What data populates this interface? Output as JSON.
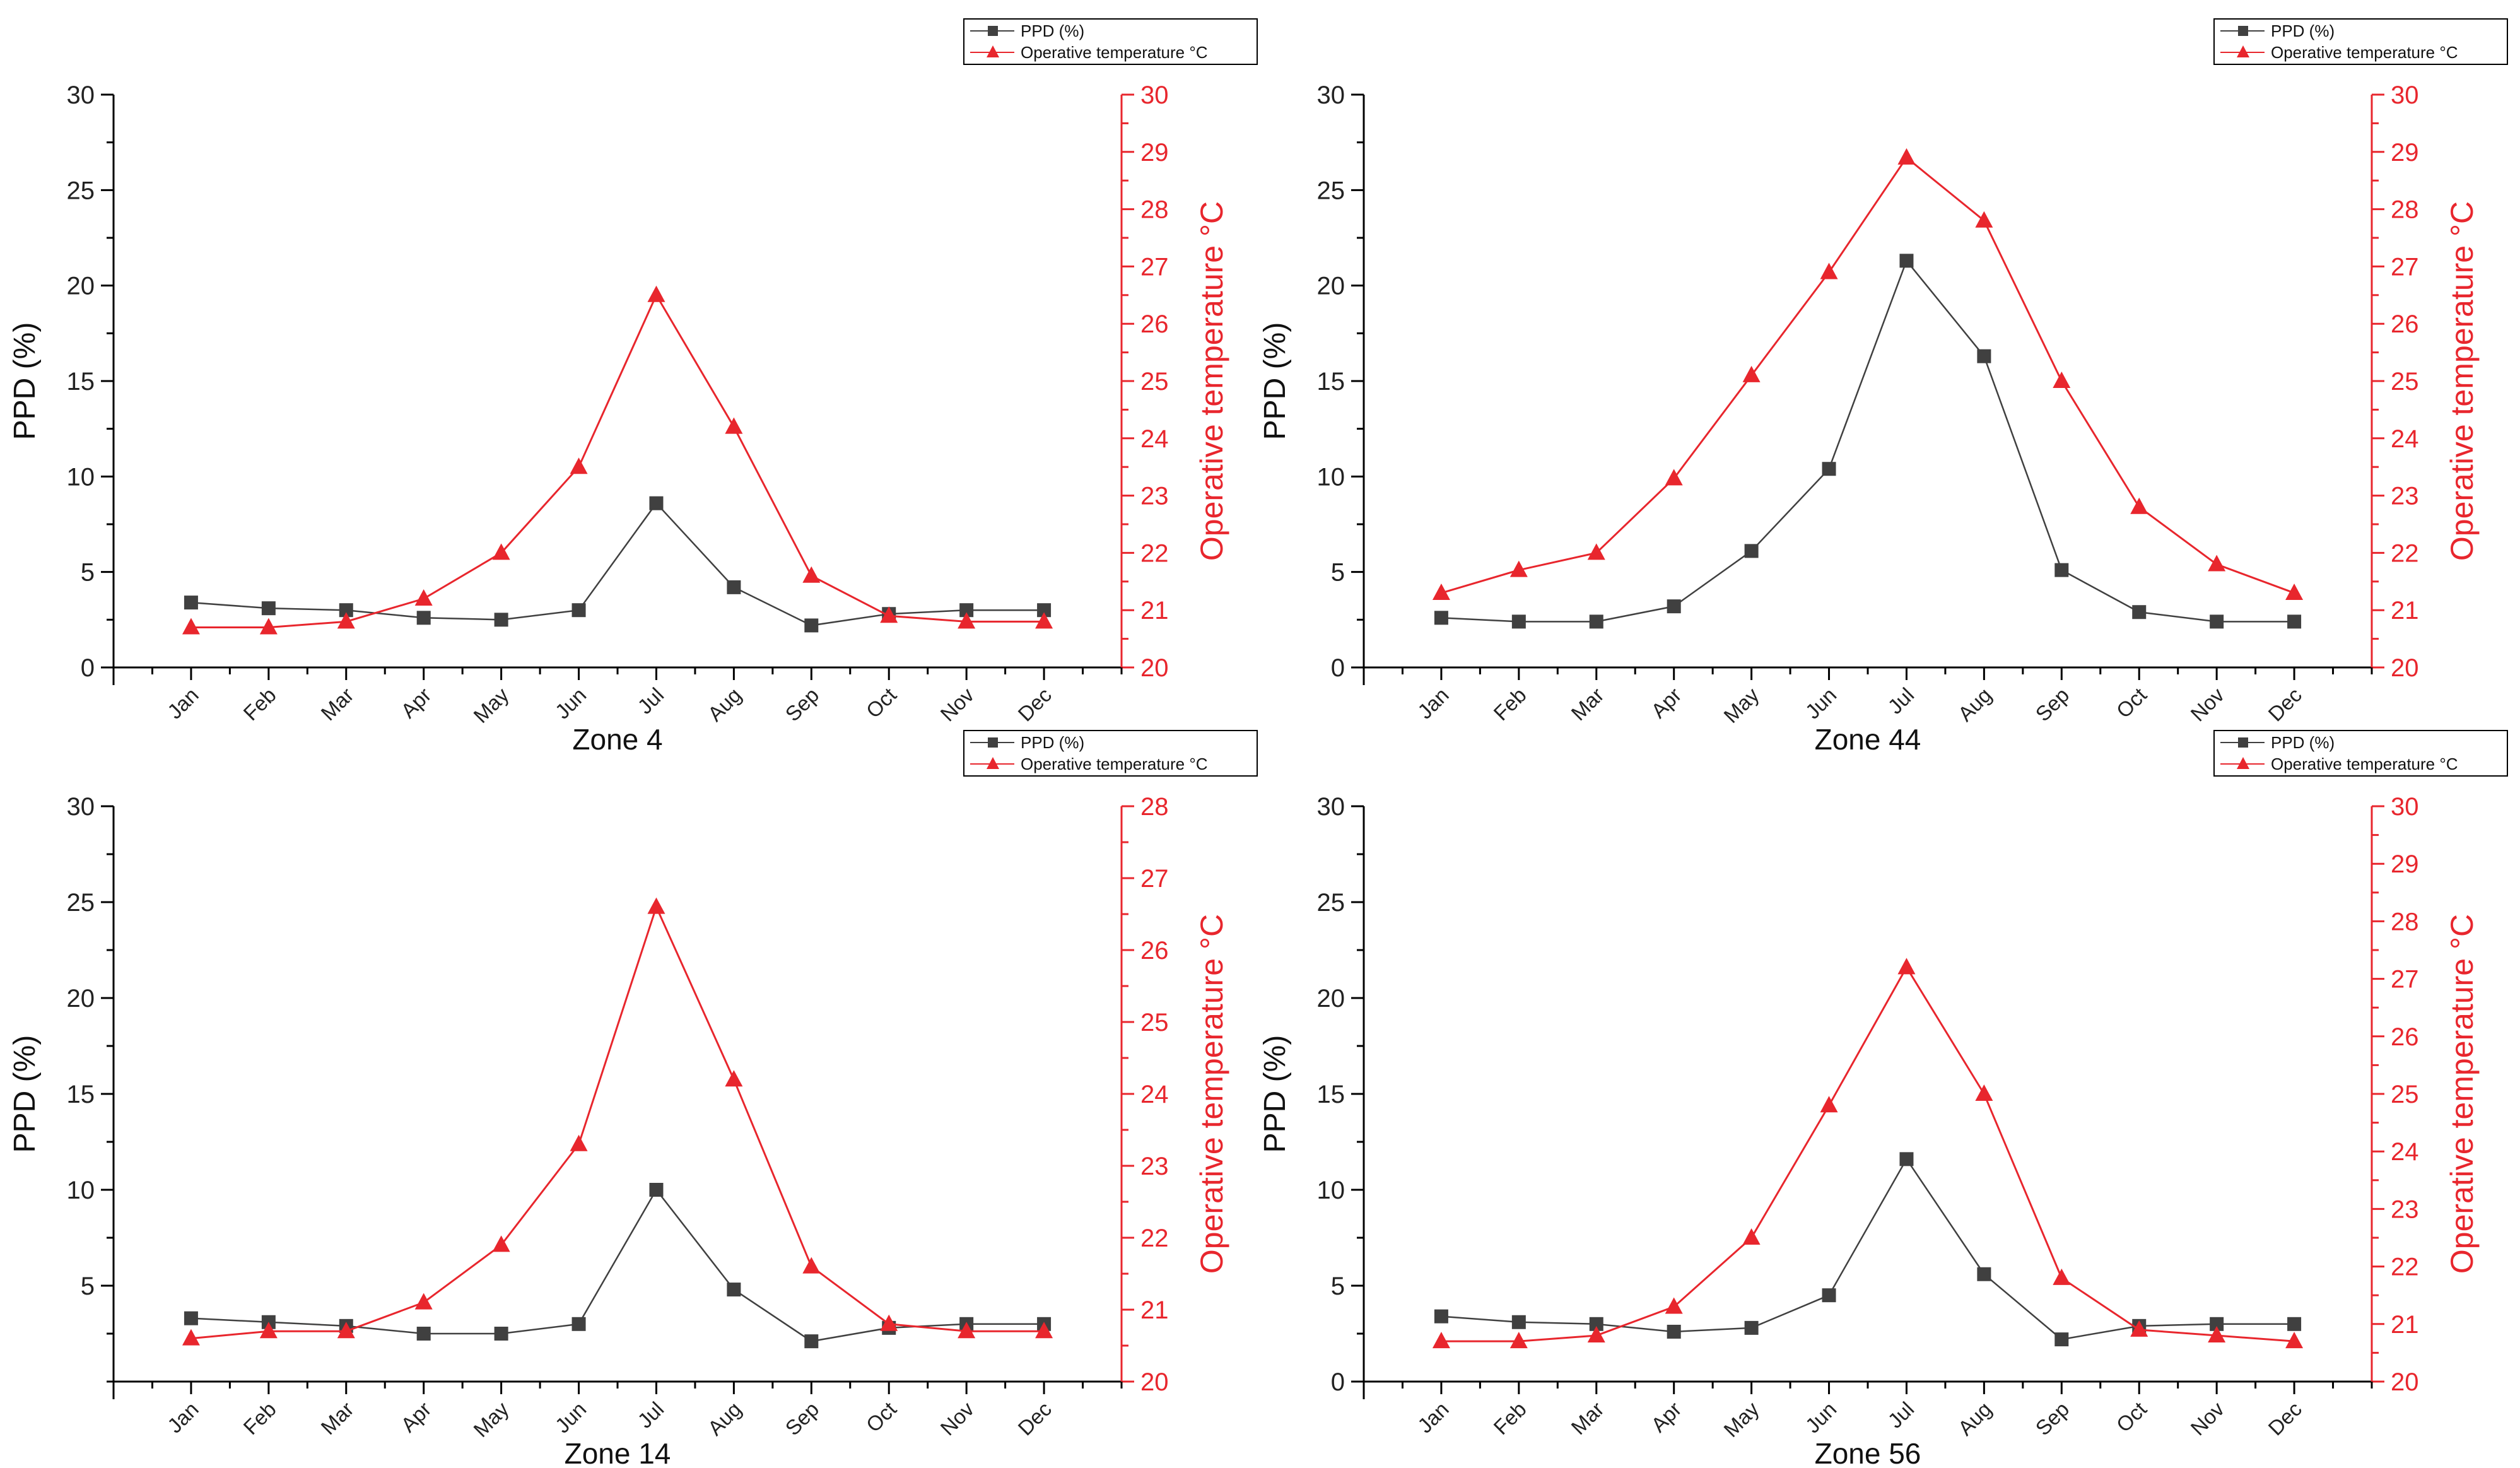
{
  "colors": {
    "ppd": "#404040",
    "temp": "#e8262d",
    "axis": "#000000"
  },
  "chart_data": [
    {
      "type": "line",
      "title": "Zone 4",
      "categories": [
        "Jan",
        "Feb",
        "Mar",
        "Apr",
        "May",
        "Jun",
        "Jul",
        "Aug",
        "Sep",
        "Oct",
        "Nov",
        "Dec"
      ],
      "ylabel": "PPD (%)",
      "y2label": "Operative temperature °C",
      "ylim": [
        0,
        30
      ],
      "y_ticks": [
        0,
        5,
        10,
        15,
        20,
        25,
        30
      ],
      "y2lim": [
        20,
        30
      ],
      "y2_ticks": [
        20,
        21,
        22,
        23,
        24,
        25,
        26,
        27,
        28,
        29,
        30
      ],
      "legend_position": "top-right",
      "series": [
        {
          "name": "PPD (%)",
          "axis": "left",
          "marker": "square",
          "values": [
            3.4,
            3.1,
            3.0,
            2.6,
            2.5,
            3.0,
            8.6,
            4.2,
            2.2,
            2.8,
            3.0,
            3.0
          ]
        },
        {
          "name": "Operative temperature °C",
          "axis": "right",
          "marker": "triangle",
          "values": [
            20.7,
            20.7,
            20.8,
            21.2,
            22.0,
            23.5,
            26.5,
            24.2,
            21.6,
            20.9,
            20.8,
            20.8
          ]
        }
      ]
    },
    {
      "type": "line",
      "title": "Zone 44",
      "categories": [
        "Jan",
        "Feb",
        "Mar",
        "Apr",
        "May",
        "Jun",
        "Jul",
        "Aug",
        "Sep",
        "Oct",
        "Nov",
        "Dec"
      ],
      "ylabel": "PPD (%)",
      "y2label": "Operative temperature °C",
      "ylim": [
        0,
        30
      ],
      "y_ticks": [
        0,
        5,
        10,
        15,
        20,
        25,
        30
      ],
      "y2lim": [
        20,
        30
      ],
      "y2_ticks": [
        20,
        21,
        22,
        23,
        24,
        25,
        26,
        27,
        28,
        29,
        30
      ],
      "legend_position": "top-right",
      "series": [
        {
          "name": "PPD (%)",
          "axis": "left",
          "marker": "square",
          "values": [
            2.6,
            2.4,
            2.4,
            3.2,
            6.1,
            10.4,
            21.3,
            16.3,
            5.1,
            2.9,
            2.4,
            2.4
          ]
        },
        {
          "name": "Operative temperature °C",
          "axis": "right",
          "marker": "triangle",
          "values": [
            21.3,
            21.7,
            22.0,
            23.3,
            25.1,
            26.9,
            28.9,
            27.8,
            25.0,
            22.8,
            21.8,
            21.3
          ]
        }
      ]
    },
    {
      "type": "line",
      "title": "Zone 14",
      "categories": [
        "Jan",
        "Feb",
        "Mar",
        "Apr",
        "May",
        "Jun",
        "Jul",
        "Aug",
        "Sep",
        "Oct",
        "Nov",
        "Dec"
      ],
      "ylabel": "PPD (%)",
      "y2label": "Operative temperature °C",
      "ylim": [
        0,
        30
      ],
      "y_ticks": [
        5,
        10,
        15,
        20,
        25,
        30
      ],
      "y2lim": [
        20,
        28
      ],
      "y2_ticks": [
        20,
        21,
        22,
        23,
        24,
        25,
        26,
        27,
        28
      ],
      "legend_position": "top-right",
      "series": [
        {
          "name": "PPD (%)",
          "axis": "left",
          "marker": "square",
          "values": [
            3.3,
            3.1,
            2.9,
            2.5,
            2.5,
            3.0,
            10.0,
            4.8,
            2.1,
            2.8,
            3.0,
            3.0
          ]
        },
        {
          "name": "Operative temperature °C",
          "axis": "right",
          "marker": "triangle",
          "values": [
            20.6,
            20.7,
            20.7,
            21.1,
            21.9,
            23.3,
            26.6,
            24.2,
            21.6,
            20.8,
            20.7,
            20.7
          ]
        }
      ]
    },
    {
      "type": "line",
      "title": "Zone 56",
      "categories": [
        "Jan",
        "Feb",
        "Mar",
        "Apr",
        "May",
        "Jun",
        "Jul",
        "Aug",
        "Sep",
        "Oct",
        "Nov",
        "Dec"
      ],
      "ylabel": "PPD (%)",
      "y2label": "Operative temperature °C",
      "ylim": [
        0,
        30
      ],
      "y_ticks": [
        0,
        5,
        10,
        15,
        20,
        25,
        30
      ],
      "y2lim": [
        20,
        30
      ],
      "y2_ticks": [
        20,
        21,
        22,
        23,
        24,
        25,
        26,
        27,
        28,
        29,
        30
      ],
      "legend_position": "top-right",
      "series": [
        {
          "name": "PPD (%)",
          "axis": "left",
          "marker": "square",
          "values": [
            3.4,
            3.1,
            3.0,
            2.6,
            2.8,
            4.5,
            11.6,
            5.6,
            2.2,
            2.9,
            3.0,
            3.0
          ]
        },
        {
          "name": "Operative temperature °C",
          "axis": "right",
          "marker": "triangle",
          "values": [
            20.7,
            20.7,
            20.8,
            21.3,
            22.5,
            24.8,
            27.2,
            25.0,
            21.8,
            20.9,
            20.8,
            20.7
          ]
        }
      ]
    }
  ]
}
